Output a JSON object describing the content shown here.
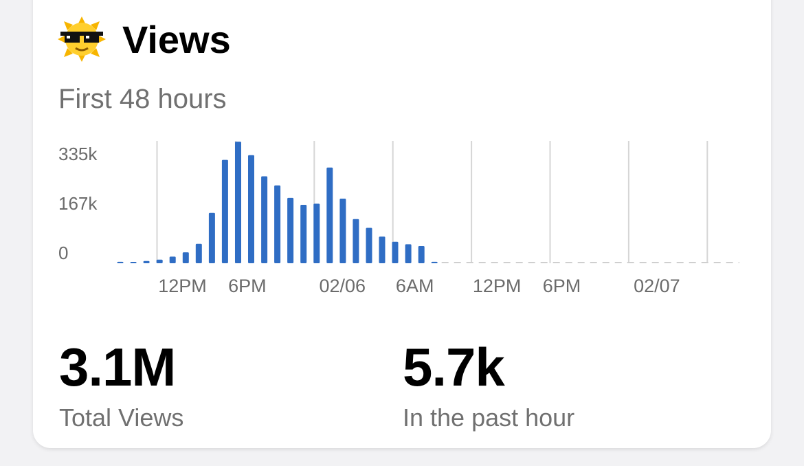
{
  "card": {
    "title": "Views",
    "subtitle": "First 48 hours",
    "icon": "cool-sun-sunglasses-icon"
  },
  "stats": [
    {
      "value": "3.1M",
      "label": "Total Views"
    },
    {
      "value": "5.7k",
      "label": "In the past hour"
    }
  ],
  "colors": {
    "bar": "#2f6dc4",
    "grid": "#d6d6d6",
    "baseline_dash": "#cfcfcf"
  },
  "chart_data": {
    "type": "bar",
    "title": "",
    "xlabel": "",
    "ylabel": "",
    "ylim": [
      0,
      335000
    ],
    "y_ticks": [
      {
        "label": "335k",
        "value": 335000
      },
      {
        "label": "167k",
        "value": 167000
      },
      {
        "label": "0",
        "value": 0
      }
    ],
    "x_tick_labels": [
      "12PM",
      "6PM",
      "02/06",
      "6AM",
      "12PM",
      "6PM",
      "02/07"
    ],
    "series": [
      {
        "values": [
          4000,
          3000,
          6000,
          10000,
          18000,
          30000,
          53000,
          138000,
          283000,
          333000,
          296000,
          238000,
          213000,
          179000,
          160000,
          163000,
          262000,
          177000,
          121000,
          97000,
          73000,
          59000,
          52000,
          47000,
          4000
        ]
      }
    ],
    "total_hours": 48,
    "grid": true
  }
}
